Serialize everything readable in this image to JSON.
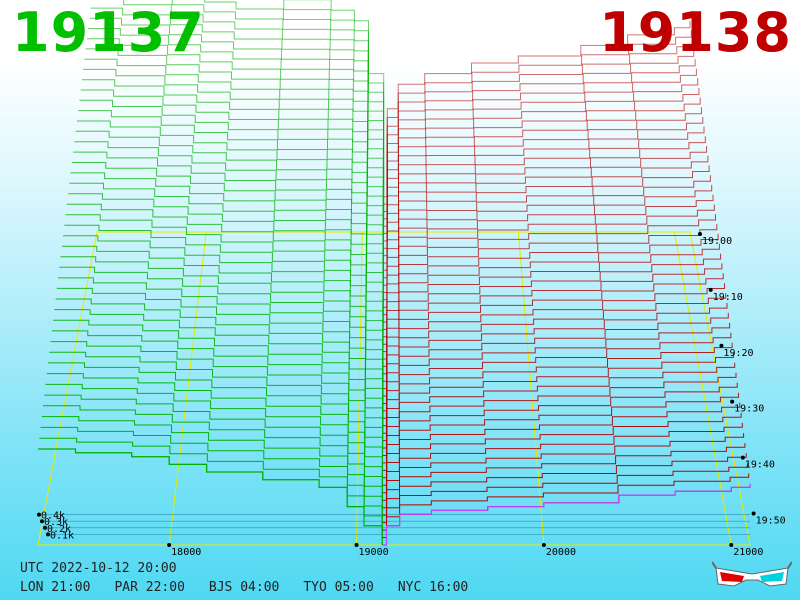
{
  "header": {
    "bid_price": "19137",
    "ask_price": "19138",
    "bid_color": "#00c000",
    "ask_color": "#c00000"
  },
  "footer": {
    "utc": "UTC 2022-10-12 20:00",
    "zones": [
      "LON 21:00",
      "PAR 22:00",
      "BJS 04:00",
      "TYO 05:00",
      "NYC 16:00"
    ]
  },
  "glasses_icon": "3d-glasses-icon",
  "chart_data": {
    "type": "area",
    "x_ticks": [
      "18000",
      "19000",
      "20000",
      "21000"
    ],
    "xlim": [
      17300,
      21100
    ],
    "y_ticks": [
      "0.1k",
      "0.2k",
      "0.3k",
      "0.4k"
    ],
    "z_ticks": [
      "19:00",
      "19:10",
      "19:20",
      "19:30",
      "19:40",
      "19:50"
    ],
    "grid": true,
    "series": [
      {
        "side": "bid",
        "color": "#00b000",
        "x": [
          17300,
          17500,
          17800,
          18000,
          18200,
          18500,
          18800,
          18950,
          19040,
          19137
        ],
        "y_front": [
          0.25,
          0.24,
          0.23,
          0.21,
          0.19,
          0.17,
          0.15,
          0.1,
          0.05,
          0.0
        ],
        "y_back": [
          0.78,
          0.76,
          0.73,
          0.71,
          0.69,
          0.66,
          0.63,
          0.6,
          0.45,
          0.05
        ]
      },
      {
        "side": "ask",
        "color": "#b00000",
        "x": [
          19138,
          19160,
          19230,
          19400,
          19700,
          20000,
          20400,
          20700,
          21000,
          21100
        ],
        "y_front": [
          0.0,
          0.05,
          0.08,
          0.09,
          0.1,
          0.11,
          0.13,
          0.14,
          0.15,
          0.16
        ],
        "y_back": [
          0.1,
          0.35,
          0.42,
          0.45,
          0.48,
          0.5,
          0.53,
          0.56,
          0.58,
          0.6
        ]
      }
    ]
  }
}
